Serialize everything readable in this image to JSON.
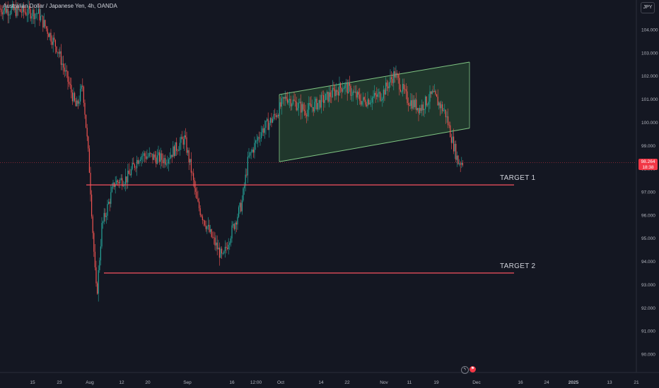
{
  "header": {
    "symbol_title": "Australian Dollar / Japanese Yen, 4h, OANDA",
    "currency_badge": "JPY"
  },
  "last_price": {
    "value": "98.264",
    "countdown": "18:38",
    "color": "#f23645"
  },
  "annotations": {
    "target1_label": "TARGET 1",
    "target2_label": "TARGET 2",
    "target1_price": 97.3,
    "target2_price": 93.5,
    "line_color": "#f7525f",
    "channel_color": "#81c784"
  },
  "axis_icons": [
    "lightning-icon",
    "flag-icon"
  ],
  "chart_data": {
    "type": "candlestick",
    "title": "Australian Dollar / Japanese Yen, 4h, OANDA",
    "xlabel": "",
    "ylabel": "",
    "ylim": [
      89.6,
      105.0
    ],
    "y_ticks": [
      "104.000",
      "103.000",
      "102.000",
      "101.000",
      "100.000",
      "99.000",
      "98.000",
      "97.000",
      "96.000",
      "95.000",
      "94.000",
      "93.000",
      "92.000",
      "91.000",
      "90.000"
    ],
    "x_ticks": [
      "15",
      "23",
      "Aug",
      "12",
      "20",
      "Sep",
      "16",
      "12:00",
      "Oct",
      "14",
      "22",
      "Nov",
      "11",
      "19",
      "Dec",
      "16",
      "24",
      "2025",
      "13",
      "21"
    ],
    "x_ticks_bold": [
      "2025"
    ],
    "grid": false,
    "up_color": "#26a69a",
    "down_color": "#ef5350",
    "price_path": [
      [
        0,
        104.9
      ],
      [
        0.06,
        104.7
      ],
      [
        0.09,
        103.2
      ],
      [
        0.11,
        101.5
      ],
      [
        0.12,
        100.6
      ],
      [
        0.13,
        101.6
      ],
      [
        0.14,
        98.2
      ],
      [
        0.15,
        93.2
      ],
      [
        0.152,
        92.5
      ],
      [
        0.16,
        95.5
      ],
      [
        0.18,
        97.4
      ],
      [
        0.2,
        97.6
      ],
      [
        0.22,
        98.6
      ],
      [
        0.26,
        98.4
      ],
      [
        0.29,
        99.3
      ],
      [
        0.3,
        98.0
      ],
      [
        0.31,
        96.5
      ],
      [
        0.33,
        95.2
      ],
      [
        0.35,
        94.1
      ],
      [
        0.36,
        95.0
      ],
      [
        0.38,
        96.5
      ],
      [
        0.39,
        98.4
      ],
      [
        0.41,
        99.6
      ],
      [
        0.43,
        100.2
      ],
      [
        0.45,
        101.1
      ],
      [
        0.48,
        100.5
      ],
      [
        0.51,
        101.0
      ],
      [
        0.54,
        101.6
      ],
      [
        0.57,
        100.9
      ],
      [
        0.6,
        101.2
      ],
      [
        0.62,
        102.1
      ],
      [
        0.64,
        101.0
      ],
      [
        0.66,
        100.6
      ],
      [
        0.68,
        101.2
      ],
      [
        0.7,
        100.4
      ],
      [
        0.71,
        99.3
      ],
      [
        0.72,
        98.3
      ]
    ],
    "channel": {
      "upper": {
        "start": [
          "Oct",
          101.2
        ],
        "end": [
          "Dec",
          102.6
        ]
      },
      "lower": {
        "start": [
          "Oct",
          98.3
        ],
        "end": [
          "Dec",
          99.75
        ]
      }
    },
    "horizontal_lines": [
      {
        "label": "TARGET 1",
        "price": 97.3
      },
      {
        "label": "TARGET 2",
        "price": 93.5
      }
    ],
    "last_price_line": 98.264
  }
}
